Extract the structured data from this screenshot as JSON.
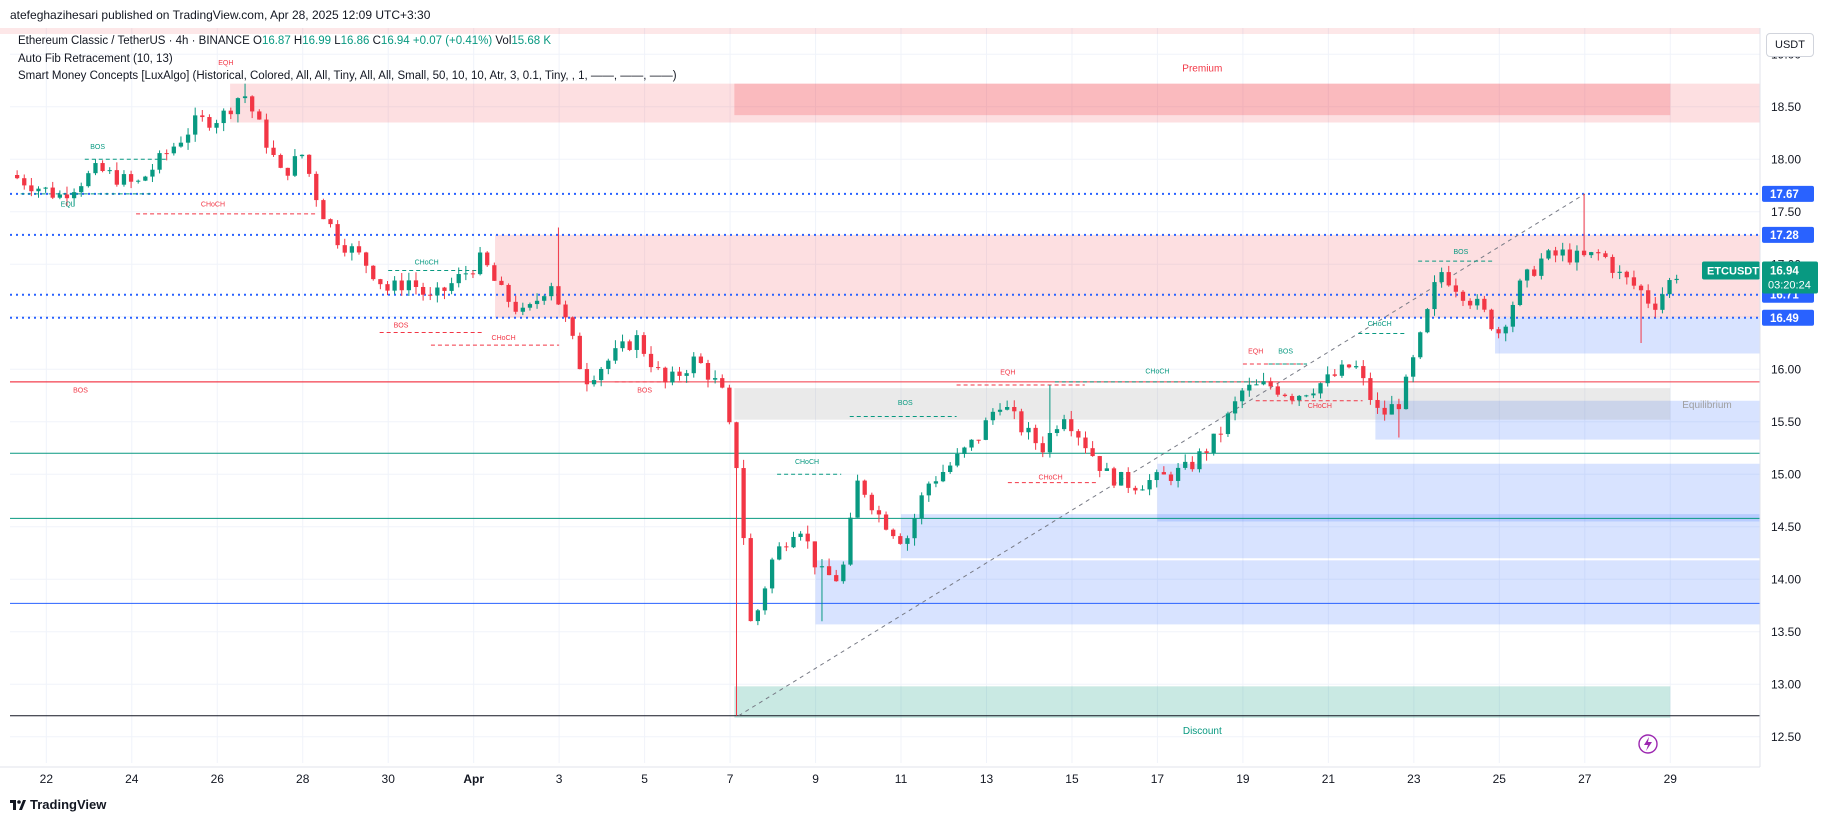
{
  "header": {
    "published_by": "atefeghazihesari published on TradingView.com, Apr 28, 2025 12:09 UTC+3:30"
  },
  "legend": {
    "symbol": "Ethereum Classic / TetherUS · 4h · BINANCE",
    "o_label": "O",
    "o_value": "16.87",
    "h_label": "H",
    "h_value": "16.99",
    "l_label": "L",
    "l_value": "16.86",
    "c_label": "C",
    "c_value": "16.94",
    "change": "+0.07 (+0.41%)",
    "vol_label": "Vol",
    "vol_value": "15.68 K",
    "indicator_1": "Auto Fib Retracement (10, 13)",
    "indicator_2": "Smart Money Concepts [LuxAlgo] (Historical, Colored, All, All, Tiny, All, All, Small, 50, 10, 10, Atr, 3, 0.1, Tiny, , 1, ——, ——, ——)"
  },
  "currency_button": "USDT",
  "footer": {
    "brand": "TradingView"
  },
  "colors": {
    "up": "#089981",
    "down": "#f23645",
    "premium": "#f23645",
    "discount": "#089981",
    "equilibrium": "#9e9e9e",
    "fib_blue": "#2962ff",
    "ob_blue": "#2962ff"
  },
  "chart_data": {
    "type": "candlestick",
    "symbol": "ETCUSDT",
    "timeframe": "4h",
    "ylim": [
      12.25,
      19.25
    ],
    "y_ticks": [
      "19.00",
      "18.50",
      "18.00",
      "17.50",
      "17.00",
      "16.50",
      "16.00",
      "15.50",
      "15.00",
      "14.50",
      "14.00",
      "13.50",
      "13.00",
      "12.50"
    ],
    "x_ticks": [
      {
        "label": "22",
        "day": 0
      },
      {
        "label": "24",
        "day": 2
      },
      {
        "label": "26",
        "day": 4
      },
      {
        "label": "28",
        "day": 6
      },
      {
        "label": "30",
        "day": 8
      },
      {
        "label": "Apr",
        "day": 10
      },
      {
        "label": "3",
        "day": 12
      },
      {
        "label": "5",
        "day": 14
      },
      {
        "label": "7",
        "day": 16
      },
      {
        "label": "9",
        "day": 18
      },
      {
        "label": "11",
        "day": 20
      },
      {
        "label": "13",
        "day": 22
      },
      {
        "label": "15",
        "day": 24
      },
      {
        "label": "17",
        "day": 26
      },
      {
        "label": "19",
        "day": 28
      },
      {
        "label": "21",
        "day": 30
      },
      {
        "label": "23",
        "day": 32
      },
      {
        "label": "25",
        "day": 34
      },
      {
        "label": "27",
        "day": 36
      },
      {
        "label": "29",
        "day": 38
      }
    ],
    "x_range_days": [
      -0.85,
      40.1
    ],
    "path_points": [
      [
        -0.85,
        17.85
      ],
      [
        0.3,
        17.65
      ],
      [
        1.2,
        17.9
      ],
      [
        2.1,
        17.75
      ],
      [
        2.8,
        18.05
      ],
      [
        3.5,
        18.35
      ],
      [
        4.1,
        18.4
      ],
      [
        4.6,
        18.65
      ],
      [
        5.0,
        18.3
      ],
      [
        5.5,
        17.85
      ],
      [
        6.0,
        18.05
      ],
      [
        6.4,
        17.55
      ],
      [
        6.8,
        17.25
      ],
      [
        7.4,
        17.05
      ],
      [
        8.0,
        16.75
      ],
      [
        8.5,
        16.85
      ],
      [
        9.0,
        16.65
      ],
      [
        9.6,
        16.85
      ],
      [
        10.2,
        17.05
      ],
      [
        10.6,
        16.75
      ],
      [
        11.2,
        16.5
      ],
      [
        11.8,
        16.85
      ],
      [
        12.2,
        16.4
      ],
      [
        12.6,
        15.9
      ],
      [
        13.2,
        16.1
      ],
      [
        13.8,
        16.3
      ],
      [
        14.5,
        15.85
      ],
      [
        15.2,
        16.1
      ],
      [
        15.8,
        15.8
      ],
      [
        16.2,
        15.0
      ],
      [
        16.5,
        13.5
      ],
      [
        17.0,
        14.2
      ],
      [
        17.6,
        14.55
      ],
      [
        18.1,
        14.05
      ],
      [
        18.6,
        14.0
      ],
      [
        19.0,
        14.95
      ],
      [
        19.5,
        14.6
      ],
      [
        20.1,
        14.35
      ],
      [
        20.6,
        14.9
      ],
      [
        21.2,
        15.1
      ],
      [
        21.8,
        15.35
      ],
      [
        22.3,
        15.7
      ],
      [
        22.8,
        15.45
      ],
      [
        23.3,
        15.25
      ],
      [
        23.8,
        15.6
      ],
      [
        24.3,
        15.3
      ],
      [
        24.8,
        15.0
      ],
      [
        25.4,
        14.9
      ],
      [
        26.0,
        14.95
      ],
      [
        26.7,
        15.05
      ],
      [
        27.4,
        15.35
      ],
      [
        28.0,
        15.8
      ],
      [
        28.6,
        15.85
      ],
      [
        29.2,
        15.75
      ],
      [
        30.0,
        15.9
      ],
      [
        30.6,
        16.05
      ],
      [
        31.2,
        15.55
      ],
      [
        31.7,
        15.7
      ],
      [
        32.2,
        16.35
      ],
      [
        32.6,
        16.95
      ],
      [
        33.1,
        16.75
      ],
      [
        33.5,
        16.6
      ],
      [
        34.0,
        16.35
      ],
      [
        34.5,
        16.8
      ],
      [
        35.0,
        17.05
      ],
      [
        35.5,
        17.1
      ],
      [
        35.9,
        17.05
      ],
      [
        36.4,
        17.1
      ],
      [
        36.8,
        16.9
      ],
      [
        37.3,
        16.75
      ],
      [
        37.6,
        16.6
      ],
      [
        38.1,
        16.9
      ],
      [
        38.25,
        16.94
      ]
    ],
    "wick_spikes": [
      {
        "day": 4.7,
        "high": 18.72
      },
      {
        "day": 12.0,
        "high": 17.35
      },
      {
        "day": 16.2,
        "low": 12.7
      },
      {
        "day": 18.1,
        "low": 13.6
      },
      {
        "day": 23.5,
        "high": 15.85
      },
      {
        "day": 36.0,
        "high": 17.67
      },
      {
        "day": 37.4,
        "low": 16.25
      },
      {
        "day": 31.7,
        "low": 15.35
      }
    ],
    "last": {
      "label": "ETCUSDT",
      "price": "16.94",
      "countdown": "03:20:24"
    },
    "price_labels": [
      {
        "value": "17.67",
        "color": "#2962ff"
      },
      {
        "value": "17.28",
        "color": "#2962ff"
      },
      {
        "value": "16.71",
        "color": "#2962ff"
      },
      {
        "value": "16.49",
        "color": "#2962ff"
      }
    ],
    "zones": [
      {
        "label": "Premium",
        "from_day": 16.1,
        "to_day": 38.0,
        "low": 18.42,
        "high": 18.72,
        "color": "#f23645"
      },
      {
        "label": "Equilibrium",
        "from_day": 16.1,
        "to_day": 38.0,
        "low": 15.52,
        "high": 15.82,
        "color": "#9e9e9e"
      },
      {
        "label": "Discount",
        "from_day": 16.1,
        "to_day": 38.0,
        "low": 12.68,
        "high": 12.98,
        "color": "#089981"
      }
    ],
    "order_blocks": [
      {
        "from_day": 4.3,
        "to_day": 40.1,
        "low": 18.35,
        "high": 18.72,
        "color": "#f23645"
      },
      {
        "from_day": 10.5,
        "to_day": 40.1,
        "low": 16.49,
        "high": 17.28,
        "color": "#f23645"
      },
      {
        "from_day": 33.9,
        "to_day": 40.1,
        "low": 16.15,
        "high": 16.49,
        "color": "#2962ff"
      },
      {
        "from_day": 31.1,
        "to_day": 40.1,
        "low": 15.33,
        "high": 15.7,
        "color": "#2962ff"
      },
      {
        "from_day": 26.0,
        "to_day": 40.1,
        "low": 14.55,
        "high": 15.1,
        "color": "#2962ff"
      },
      {
        "from_day": 20.0,
        "to_day": 40.1,
        "low": 14.2,
        "high": 14.62,
        "color": "#2962ff"
      },
      {
        "from_day": 18.0,
        "to_day": 40.1,
        "low": 13.57,
        "high": 14.18,
        "color": "#2962ff"
      }
    ],
    "fib_levels": [
      {
        "value": 17.67,
        "color": "#2962ff",
        "style": "dotted"
      },
      {
        "value": 17.28,
        "color": "#2962ff",
        "style": "dotted"
      },
      {
        "value": 16.71,
        "color": "#2962ff",
        "style": "dotted"
      },
      {
        "value": 16.49,
        "color": "#2962ff",
        "style": "dotted"
      },
      {
        "value": 15.88,
        "color": "#f23645",
        "style": "solid"
      },
      {
        "value": 15.2,
        "color": "#089981",
        "style": "solid"
      },
      {
        "value": 14.58,
        "color": "#089981",
        "style": "solid"
      },
      {
        "value": 13.77,
        "color": "#2962ff",
        "style": "solid"
      },
      {
        "value": 12.7,
        "color": "#131722",
        "style": "solid"
      }
    ],
    "structure_labels": [
      {
        "text": "EQH",
        "day": 4.2,
        "price": 18.9,
        "color": "#f23645"
      },
      {
        "text": "BOS",
        "day": 1.2,
        "price": 18.1,
        "color": "#089981"
      },
      {
        "text": "EQL",
        "day": 0.5,
        "price": 17.55,
        "color": "#089981"
      },
      {
        "text": "CHoCH",
        "day": 3.9,
        "price": 17.55,
        "color": "#f23645"
      },
      {
        "text": "CHoCH",
        "day": 8.9,
        "price": 17.0,
        "color": "#089981"
      },
      {
        "text": "BOS",
        "day": 8.3,
        "price": 16.4,
        "color": "#f23645"
      },
      {
        "text": "CHoCH",
        "day": 10.7,
        "price": 16.28,
        "color": "#f23645"
      },
      {
        "text": "BOS",
        "day": 0.8,
        "price": 15.78,
        "color": "#f23645"
      },
      {
        "text": "BOS",
        "day": 14.0,
        "price": 15.78,
        "color": "#f23645"
      },
      {
        "text": "CHoCH",
        "day": 17.8,
        "price": 15.1,
        "color": "#089981"
      },
      {
        "text": "BOS",
        "day": 20.1,
        "price": 15.66,
        "color": "#089981"
      },
      {
        "text": "EQH",
        "day": 22.5,
        "price": 15.95,
        "color": "#f23645"
      },
      {
        "text": "CHoCH",
        "day": 23.5,
        "price": 14.95,
        "color": "#f23645"
      },
      {
        "text": "CHoCH",
        "day": 26.0,
        "price": 15.96,
        "color": "#089981"
      },
      {
        "text": "EQH",
        "day": 28.3,
        "price": 16.15,
        "color": "#f23645"
      },
      {
        "text": "BOS",
        "day": 29.0,
        "price": 16.15,
        "color": "#089981"
      },
      {
        "text": "CHoCH",
        "day": 29.8,
        "price": 15.63,
        "color": "#f23645"
      },
      {
        "text": "CHoCH",
        "day": 31.2,
        "price": 16.41,
        "color": "#089981"
      },
      {
        "text": "BOS",
        "day": 33.1,
        "price": 17.1,
        "color": "#089981"
      }
    ],
    "structure_lines": [
      {
        "from_day": 0.9,
        "to_day": 2.8,
        "price": 18.0,
        "color": "#089981"
      },
      {
        "from_day": -0.6,
        "to_day": 2.5,
        "price": 17.67,
        "color": "#089981"
      },
      {
        "from_day": 2.1,
        "to_day": 6.3,
        "price": 17.48,
        "color": "#f23645"
      },
      {
        "from_day": 8.0,
        "to_day": 10.2,
        "price": 16.94,
        "color": "#089981"
      },
      {
        "from_day": 7.8,
        "to_day": 10.2,
        "price": 16.35,
        "color": "#f23645"
      },
      {
        "from_day": 9.0,
        "to_day": 12.0,
        "price": 16.23,
        "color": "#f23645"
      },
      {
        "from_day": 13.3,
        "to_day": 15.1,
        "price": 15.88,
        "color": "#f23645"
      },
      {
        "from_day": 17.1,
        "to_day": 18.6,
        "price": 15.0,
        "color": "#089981"
      },
      {
        "from_day": 18.8,
        "to_day": 21.3,
        "price": 15.55,
        "color": "#089981"
      },
      {
        "from_day": 21.3,
        "to_day": 24.3,
        "price": 15.85,
        "color": "#f23645"
      },
      {
        "from_day": 22.5,
        "to_day": 24.6,
        "price": 14.92,
        "color": "#f23645"
      },
      {
        "from_day": 23.6,
        "to_day": 28.4,
        "price": 15.88,
        "color": "#089981"
      },
      {
        "from_day": 28.0,
        "to_day": 29.5,
        "price": 16.05,
        "color": "#f23645"
      },
      {
        "from_day": 28.6,
        "to_day": 29.5,
        "price": 16.05,
        "color": "#089981"
      },
      {
        "from_day": 28.3,
        "to_day": 30.8,
        "price": 15.7,
        "color": "#f23645"
      },
      {
        "from_day": 30.7,
        "to_day": 31.8,
        "price": 16.34,
        "color": "#089981"
      },
      {
        "from_day": 32.1,
        "to_day": 33.9,
        "price": 17.03,
        "color": "#089981"
      }
    ],
    "bos_line": {
      "from_day": -0.85,
      "to_day": 12.0,
      "price": 15.88,
      "color": "#f23645"
    },
    "diagonal": {
      "from": [
        16.2,
        12.7
      ],
      "to": [
        36.0,
        17.67
      ]
    }
  }
}
